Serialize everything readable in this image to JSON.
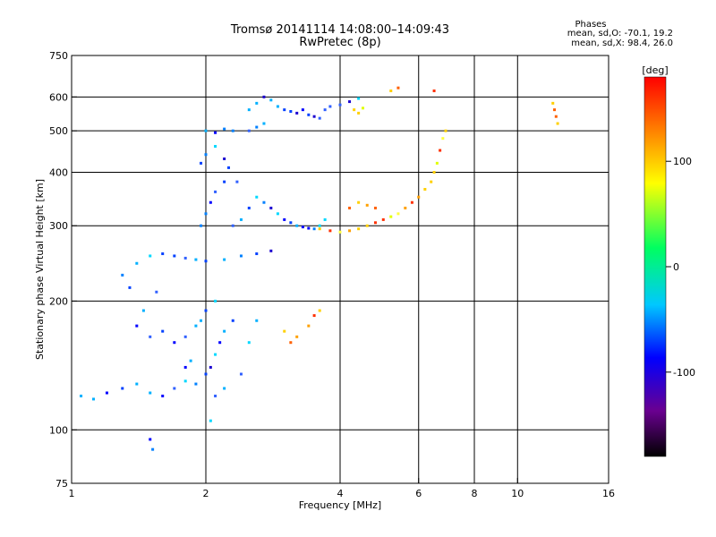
{
  "header": {
    "title_line1": "Tromsø 20141114 14:08:00–14:09:43",
    "title_line2": "RwPretec (8p)",
    "stats_title": "Phases",
    "stats_o": "mean, sd,O: -70.1, 19.2",
    "stats_x": "mean, sd,X:  98.4, 26.0"
  },
  "chart_data": {
    "type": "scatter",
    "xlabel": "Frequency [MHz]",
    "ylabel": "Stationary phase Virtual Height [km]",
    "x_scale": "log",
    "y_scale": "log",
    "xlim": [
      1,
      16
    ],
    "ylim": [
      75,
      750
    ],
    "x_ticks": [
      1,
      2,
      4,
      6,
      8,
      10,
      16
    ],
    "y_ticks": [
      75,
      100,
      200,
      300,
      400,
      500,
      600,
      750
    ],
    "grid_x": [
      2,
      4,
      6,
      8,
      10
    ],
    "grid_y": [
      100,
      200,
      300,
      400,
      500,
      600
    ],
    "colorbar": {
      "label": "[deg]",
      "range": [
        -180,
        180
      ],
      "ticks": [
        100,
        0,
        -100
      ]
    },
    "series": [
      {
        "points": [
          [
            1.05,
            120
          ],
          [
            1.12,
            118
          ],
          [
            1.2,
            122
          ],
          [
            1.3,
            125
          ],
          [
            1.4,
            128
          ],
          [
            1.5,
            122
          ],
          [
            1.6,
            120
          ],
          [
            1.7,
            125
          ],
          [
            1.8,
            130
          ],
          [
            1.9,
            128
          ],
          [
            2.0,
            135
          ],
          [
            2.05,
            140
          ],
          [
            2.1,
            150
          ],
          [
            2.15,
            160
          ],
          [
            2.2,
            170
          ],
          [
            2.3,
            180
          ],
          [
            2.1,
            200
          ],
          [
            2.0,
            190
          ],
          [
            1.95,
            180
          ],
          [
            1.9,
            175
          ],
          [
            1.6,
            170
          ],
          [
            1.7,
            160
          ],
          [
            1.8,
            165
          ],
          [
            1.5,
            165
          ],
          [
            1.4,
            175
          ],
          [
            1.45,
            190
          ],
          [
            1.55,
            210
          ],
          [
            1.35,
            215
          ],
          [
            1.3,
            230
          ],
          [
            1.4,
            245
          ],
          [
            1.5,
            255
          ],
          [
            1.6,
            258
          ],
          [
            1.7,
            255
          ],
          [
            1.8,
            252
          ],
          [
            1.9,
            250
          ],
          [
            2.0,
            248
          ],
          [
            2.2,
            250
          ],
          [
            2.4,
            255
          ],
          [
            2.6,
            258
          ],
          [
            2.8,
            262
          ],
          [
            1.95,
            300
          ],
          [
            2.0,
            320
          ],
          [
            2.05,
            340
          ],
          [
            2.1,
            360
          ],
          [
            2.2,
            380
          ],
          [
            2.3,
            300
          ],
          [
            2.4,
            310
          ],
          [
            2.5,
            330
          ],
          [
            2.6,
            350
          ],
          [
            2.7,
            340
          ],
          [
            2.8,
            330
          ],
          [
            2.9,
            320
          ],
          [
            3.0,
            310
          ],
          [
            3.1,
            305
          ],
          [
            3.2,
            300
          ],
          [
            3.3,
            298
          ],
          [
            3.4,
            296
          ],
          [
            3.5,
            295
          ],
          [
            3.6,
            300
          ],
          [
            3.7,
            310
          ],
          [
            2.5,
            500
          ],
          [
            2.6,
            510
          ],
          [
            2.7,
            520
          ],
          [
            2.5,
            560
          ],
          [
            2.6,
            580
          ],
          [
            2.7,
            600
          ],
          [
            2.8,
            590
          ],
          [
            2.9,
            570
          ],
          [
            3.0,
            560
          ],
          [
            3.1,
            555
          ],
          [
            3.2,
            550
          ],
          [
            3.3,
            560
          ],
          [
            3.4,
            545
          ],
          [
            3.5,
            540
          ],
          [
            3.6,
            535
          ],
          [
            3.7,
            560
          ],
          [
            3.8,
            570
          ],
          [
            4.0,
            575
          ],
          [
            4.2,
            585
          ],
          [
            4.4,
            595
          ],
          [
            2.0,
            500
          ],
          [
            2.1,
            495
          ],
          [
            2.2,
            505
          ],
          [
            2.3,
            500
          ],
          [
            1.95,
            420
          ],
          [
            2.0,
            440
          ],
          [
            2.1,
            460
          ],
          [
            2.2,
            430
          ],
          [
            2.25,
            410
          ],
          [
            2.35,
            380
          ],
          [
            1.5,
            95
          ],
          [
            1.52,
            90
          ],
          [
            2.05,
            105
          ],
          [
            1.85,
            145
          ],
          [
            1.8,
            140
          ],
          [
            2.1,
            120
          ],
          [
            2.2,
            125
          ],
          [
            2.4,
            135
          ],
          [
            2.5,
            160
          ],
          [
            2.6,
            180
          ]
        ],
        "phase": "O, around -100 deg (blue/cyan)"
      },
      {
        "points": [
          [
            3.6,
            295
          ],
          [
            3.8,
            292
          ],
          [
            4.0,
            290
          ],
          [
            4.2,
            292
          ],
          [
            4.4,
            295
          ],
          [
            4.6,
            300
          ],
          [
            4.8,
            305
          ],
          [
            5.0,
            310
          ],
          [
            5.2,
            315
          ],
          [
            5.4,
            320
          ],
          [
            5.6,
            330
          ],
          [
            5.8,
            340
          ],
          [
            6.0,
            350
          ],
          [
            6.2,
            365
          ],
          [
            6.4,
            380
          ],
          [
            6.5,
            400
          ],
          [
            6.6,
            420
          ],
          [
            6.7,
            450
          ],
          [
            6.8,
            480
          ],
          [
            6.9,
            500
          ],
          [
            4.2,
            330
          ],
          [
            4.4,
            340
          ],
          [
            4.6,
            335
          ],
          [
            4.8,
            330
          ],
          [
            3.0,
            170
          ],
          [
            3.1,
            160
          ],
          [
            3.2,
            165
          ],
          [
            3.4,
            175
          ],
          [
            3.5,
            185
          ],
          [
            3.6,
            190
          ],
          [
            4.3,
            560
          ],
          [
            4.4,
            550
          ],
          [
            4.5,
            565
          ],
          [
            5.2,
            620
          ],
          [
            5.4,
            630
          ],
          [
            12.0,
            580
          ],
          [
            12.1,
            560
          ],
          [
            12.2,
            540
          ],
          [
            12.3,
            520
          ],
          [
            6.5,
            620
          ]
        ],
        "phase": "X, around +100 deg (yellow/orange/red)"
      }
    ]
  }
}
